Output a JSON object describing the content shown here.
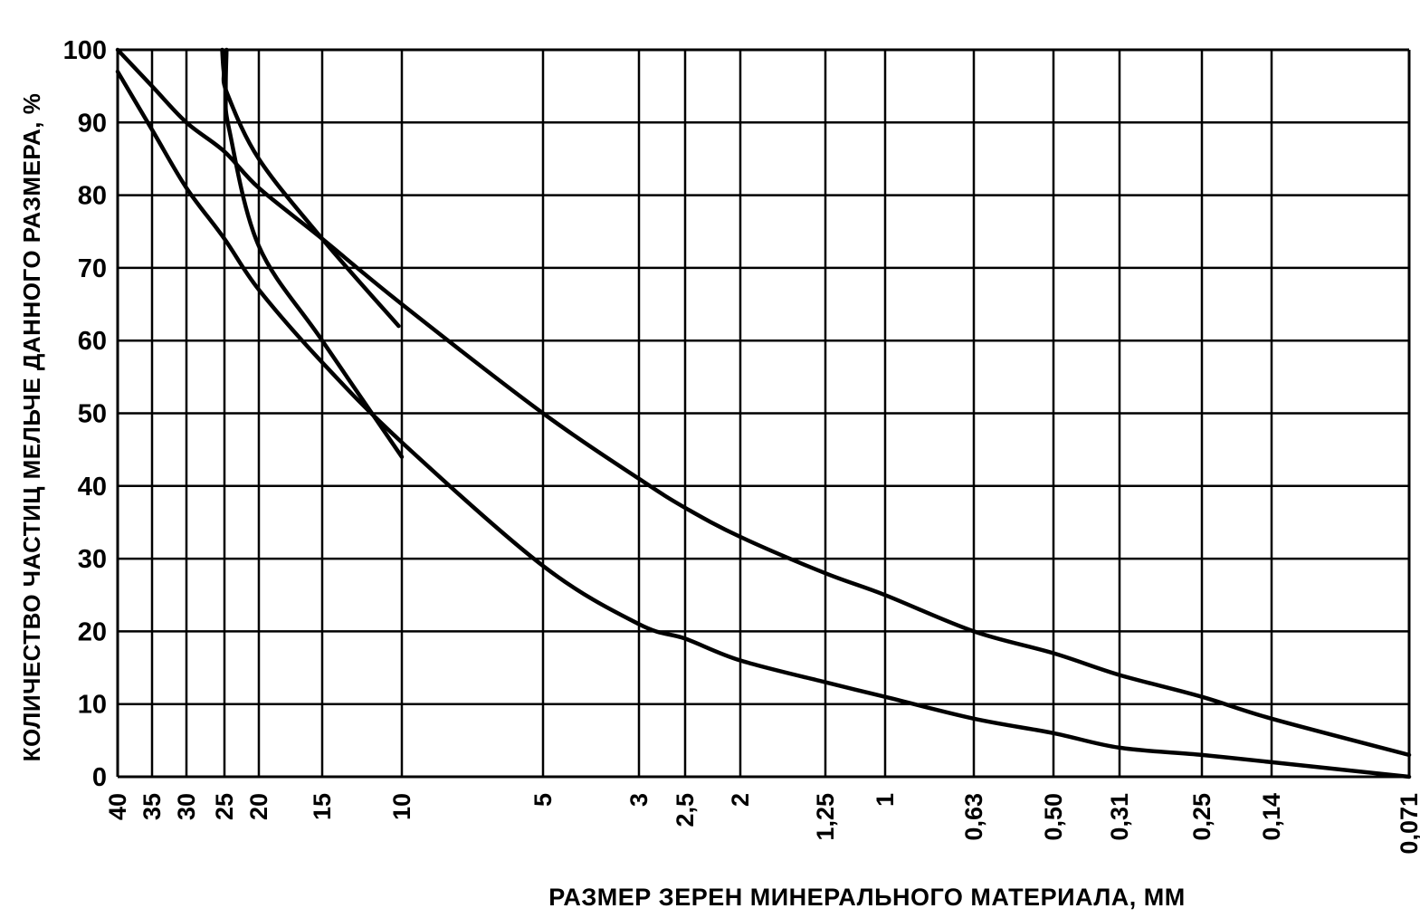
{
  "chart_data": {
    "type": "line",
    "title": "",
    "xlabel": "РАЗМЕР ЗЕРЕН МИНЕРАЛЬНОГО МАТЕРИАЛА, ММ",
    "ylabel": "КОЛИЧЕСТВО ЧАСТИЦ МЕЛЬЧЕ ДАННОГО РАЗМЕРА, %",
    "x_scale": "sieve sizes, decreasing left to right",
    "x_ticks": [
      "40",
      "35",
      "30",
      "25",
      "20",
      "15",
      "10",
      "5",
      "3",
      "2,5",
      "2",
      "1,25",
      "1",
      "0,63",
      "0,50",
      "0,31",
      "0,25",
      "0,14",
      "0,071"
    ],
    "y_ticks": [
      "0",
      "10",
      "20",
      "30",
      "40",
      "50",
      "60",
      "70",
      "80",
      "90",
      "100"
    ],
    "ylim": [
      0,
      100
    ],
    "grid": true,
    "series": [
      {
        "x": [
          "40",
          "35",
          "30",
          "25",
          "20",
          "15",
          "10",
          "5",
          "3",
          "2,5",
          "2",
          "1,25",
          "1",
          "0,63",
          "0,50",
          "0,31",
          "0,25",
          "0,14",
          "0,071"
        ],
        "y": [
          100,
          95,
          90,
          86,
          81,
          74,
          65,
          50,
          41,
          37,
          33,
          28,
          25,
          20,
          17,
          14,
          11,
          8,
          3
        ]
      },
      {
        "x": [
          "40",
          "35",
          "30",
          "25",
          "20",
          "15",
          "10",
          "5",
          "3",
          "2,5",
          "2",
          "1,25",
          "1",
          "0,63",
          "0,50",
          "0,31",
          "0,25",
          "0,14",
          "0,071"
        ],
        "y": [
          97,
          89,
          81,
          74,
          67,
          57,
          46,
          29,
          21,
          19,
          16,
          13,
          11,
          8,
          6,
          4,
          3,
          2,
          0
        ]
      },
      {
        "x": [
          "25",
          "25",
          "25",
          "20",
          "15",
          "10"
        ],
        "y": [
          100,
          97,
          94,
          85,
          74,
          62
        ],
        "x_exact": [
          25.3,
          25.1,
          24.6,
          20,
          15,
          10.2
        ]
      },
      {
        "x": [
          "25",
          "25",
          "25",
          "20",
          "15",
          "10"
        ],
        "y": [
          100,
          94,
          89,
          73,
          60,
          44
        ],
        "x_exact": [
          24.7,
          24.8,
          24.3,
          20,
          15,
          10
        ]
      }
    ]
  }
}
